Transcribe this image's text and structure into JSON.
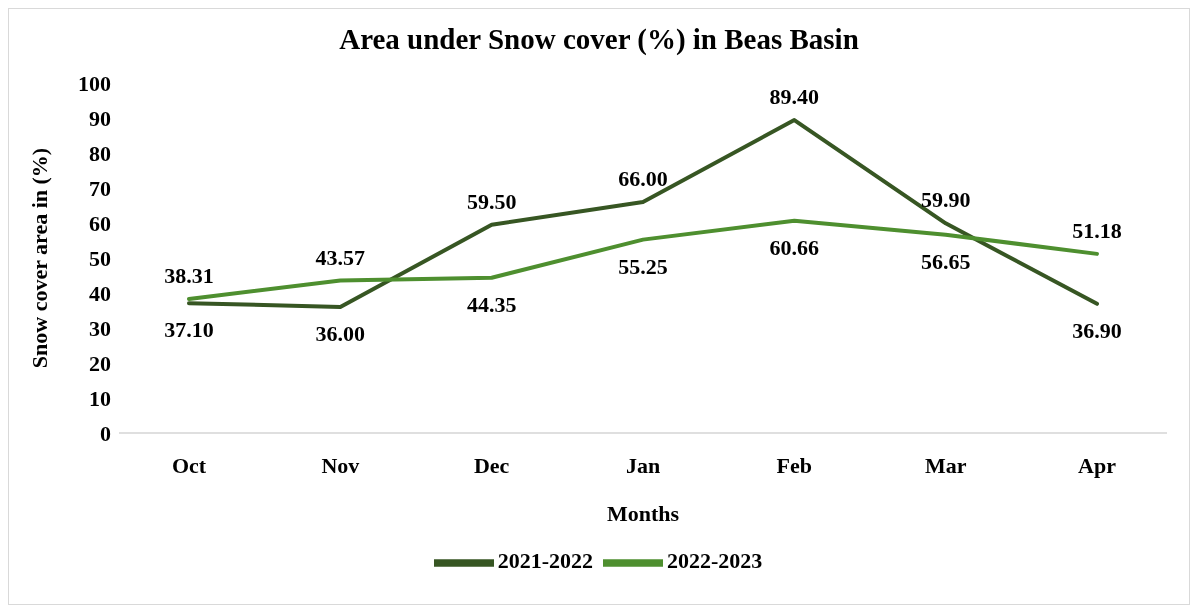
{
  "chart_data": {
    "type": "line",
    "title": "Area under Snow cover (%) in Beas Basin",
    "xlabel": "Months",
    "ylabel": "Snow cover area in (%)",
    "categories": [
      "Oct",
      "Nov",
      "Dec",
      "Jan",
      "Feb",
      "Mar",
      "Apr"
    ],
    "series": [
      {
        "name": "2021-2022",
        "color": "#375623",
        "values": [
          37.1,
          36.0,
          59.5,
          66.0,
          89.4,
          59.9,
          36.9
        ],
        "value_labels": [
          "37.10",
          "36.00",
          "59.50",
          "66.00",
          "89.40",
          "59.90",
          "36.90"
        ]
      },
      {
        "name": "2022-2023",
        "color": "#4e8f2f",
        "values": [
          38.31,
          43.57,
          44.35,
          55.25,
          60.66,
          56.65,
          51.18
        ],
        "value_labels": [
          "38.31",
          "43.57",
          "44.35",
          "55.25",
          "60.66",
          "56.65",
          "51.18"
        ]
      }
    ],
    "ylim": [
      0,
      100
    ],
    "yticks": [
      0,
      10,
      20,
      30,
      40,
      50,
      60,
      70,
      80,
      90,
      100
    ],
    "grid": false,
    "legend": "bottom",
    "marker": "none",
    "line_style": "solid"
  }
}
